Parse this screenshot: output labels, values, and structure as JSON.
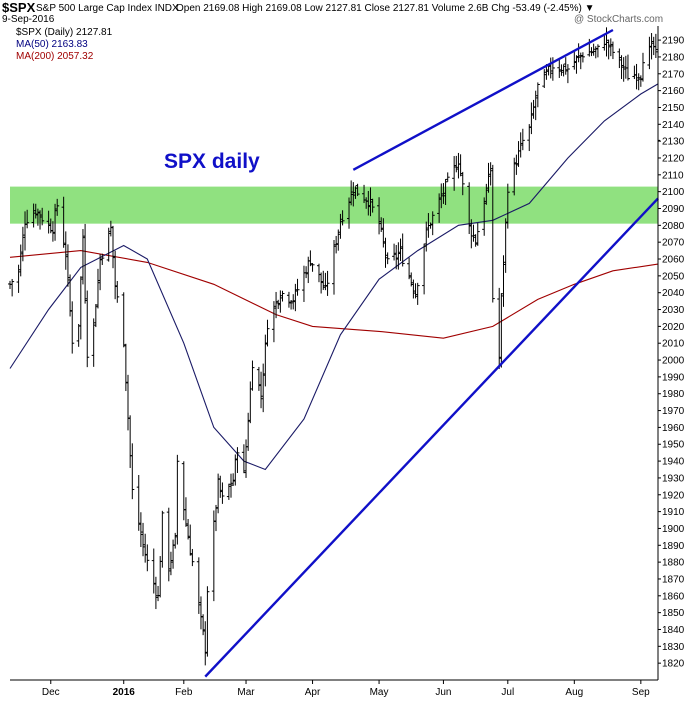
{
  "header": {
    "symbol": "$SPX",
    "description": "S&P 500 Large Cap Index INDX",
    "ohlc_line": "Open 2169.08  High 2169.08  Low 2127.81  Close 2127.81  Volume 2.6B  Chg -53.49 (-2.45%) ▼",
    "date": "9-Sep-2016",
    "credit": "@ StockCharts.com"
  },
  "legend": {
    "price": "$SPX (Daily) 2127.81",
    "ma50": "MA(50) 2163.83",
    "ma200": "MA(200) 2057.32"
  },
  "annotation": "SPX daily",
  "colors": {
    "price": "#000000",
    "ma50": "#1a1a66",
    "ma200": "#a00000",
    "trendline": "#1010c8",
    "zone": "#7ddc6a",
    "annotation": "#1010c8"
  },
  "chart_data": {
    "type": "ohlc",
    "y_axis": {
      "position": "right",
      "ylim": [
        1810,
        2196
      ],
      "ticks": [
        1820,
        1830,
        1840,
        1850,
        1860,
        1870,
        1880,
        1890,
        1900,
        1910,
        1920,
        1930,
        1940,
        1950,
        1960,
        1970,
        1980,
        1990,
        2000,
        2010,
        2020,
        2030,
        2040,
        2050,
        2060,
        2070,
        2080,
        2090,
        2100,
        2110,
        2120,
        2130,
        2140,
        2150,
        2160,
        2170,
        2180,
        2190
      ]
    },
    "x_axis": {
      "range": [
        "2015-11-12",
        "2016-09-09"
      ],
      "ticks": [
        {
          "date": "2015-12-01",
          "label": "Dec",
          "bold": false
        },
        {
          "date": "2016-01-04",
          "label": "2016",
          "bold": true
        },
        {
          "date": "2016-02-01",
          "label": "Feb",
          "bold": false
        },
        {
          "date": "2016-03-01",
          "label": "Mar",
          "bold": false
        },
        {
          "date": "2016-04-01",
          "label": "Apr",
          "bold": false
        },
        {
          "date": "2016-05-02",
          "label": "May",
          "bold": false
        },
        {
          "date": "2016-06-01",
          "label": "Jun",
          "bold": false
        },
        {
          "date": "2016-07-01",
          "label": "Jul",
          "bold": false
        },
        {
          "date": "2016-08-01",
          "label": "Aug",
          "bold": false
        },
        {
          "date": "2016-09-01",
          "label": "Sep",
          "bold": false
        }
      ]
    },
    "price_path": [
      [
        "2015-11-12",
        2045
      ],
      [
        "2015-11-16",
        2053
      ],
      [
        "2015-11-19",
        2083
      ],
      [
        "2015-11-24",
        2089
      ],
      [
        "2015-11-30",
        2080
      ],
      [
        "2015-12-02",
        2079
      ],
      [
        "2015-12-04",
        2092
      ],
      [
        "2015-12-08",
        2063
      ],
      [
        "2015-12-11",
        2012
      ],
      [
        "2015-12-14",
        2022
      ],
      [
        "2015-12-16",
        2073
      ],
      [
        "2015-12-18",
        2005
      ],
      [
        "2015-12-21",
        2021
      ],
      [
        "2015-12-24",
        2060
      ],
      [
        "2015-12-29",
        2078
      ],
      [
        "2015-12-31",
        2044
      ],
      [
        "2016-01-04",
        2012
      ],
      [
        "2016-01-07",
        1943
      ],
      [
        "2016-01-08",
        1922
      ],
      [
        "2016-01-13",
        1890
      ],
      [
        "2016-01-15",
        1880
      ],
      [
        "2016-01-20",
        1859
      ],
      [
        "2016-01-22",
        1906
      ],
      [
        "2016-01-25",
        1877
      ],
      [
        "2016-01-28",
        1893
      ],
      [
        "2016-01-29",
        1940
      ],
      [
        "2016-02-02",
        1903
      ],
      [
        "2016-02-05",
        1880
      ],
      [
        "2016-02-08",
        1853
      ],
      [
        "2016-02-11",
        1829
      ],
      [
        "2016-02-12",
        1864
      ],
      [
        "2016-02-17",
        1926
      ],
      [
        "2016-02-19",
        1917
      ],
      [
        "2016-02-24",
        1929
      ],
      [
        "2016-02-26",
        1948
      ],
      [
        "2016-02-29",
        1932
      ],
      [
        "2016-03-04",
        1999
      ],
      [
        "2016-03-08",
        1979
      ],
      [
        "2016-03-11",
        2022
      ],
      [
        "2016-03-17",
        2040
      ],
      [
        "2016-03-23",
        2036
      ],
      [
        "2016-03-31",
        2060
      ],
      [
        "2016-04-07",
        2041
      ],
      [
        "2016-04-14",
        2083
      ],
      [
        "2016-04-20",
        2102
      ],
      [
        "2016-04-27",
        2095
      ],
      [
        "2016-05-02",
        2081
      ],
      [
        "2016-05-06",
        2057
      ],
      [
        "2016-05-12",
        2064
      ],
      [
        "2016-05-19",
        2040
      ],
      [
        "2016-05-24",
        2076
      ],
      [
        "2016-05-31",
        2097
      ],
      [
        "2016-06-08",
        2119
      ],
      [
        "2016-06-13",
        2079
      ],
      [
        "2016-06-16",
        2071
      ],
      [
        "2016-06-23",
        2113
      ],
      [
        "2016-06-24",
        2037
      ],
      [
        "2016-06-27",
        2001
      ],
      [
        "2016-06-28",
        2036
      ],
      [
        "2016-07-01",
        2103
      ],
      [
        "2016-07-08",
        2130
      ],
      [
        "2016-07-11",
        2137
      ],
      [
        "2016-07-15",
        2162
      ],
      [
        "2016-07-22",
        2175
      ],
      [
        "2016-07-29",
        2173
      ],
      [
        "2016-08-05",
        2182
      ],
      [
        "2016-08-12",
        2184
      ],
      [
        "2016-08-15",
        2190
      ],
      [
        "2016-08-19",
        2183
      ],
      [
        "2016-08-26",
        2169
      ],
      [
        "2016-09-01",
        2170
      ],
      [
        "2016-09-02",
        2180
      ],
      [
        "2016-09-07",
        2186
      ],
      [
        "2016-09-08",
        2181
      ],
      [
        "2016-09-09",
        2128
      ]
    ],
    "ma50_path": [
      [
        "2015-11-12",
        1995
      ],
      [
        "2015-11-30",
        2030
      ],
      [
        "2015-12-15",
        2055
      ],
      [
        "2016-01-04",
        2068
      ],
      [
        "2016-01-15",
        2060
      ],
      [
        "2016-02-01",
        2010
      ],
      [
        "2016-02-15",
        1960
      ],
      [
        "2016-02-29",
        1940
      ],
      [
        "2016-03-10",
        1935
      ],
      [
        "2016-03-28",
        1965
      ],
      [
        "2016-04-14",
        2015
      ],
      [
        "2016-05-02",
        2048
      ],
      [
        "2016-05-20",
        2065
      ],
      [
        "2016-06-08",
        2080
      ],
      [
        "2016-06-24",
        2083
      ],
      [
        "2016-07-11",
        2093
      ],
      [
        "2016-07-29",
        2120
      ],
      [
        "2016-08-15",
        2142
      ],
      [
        "2016-09-01",
        2158
      ],
      [
        "2016-09-09",
        2164
      ]
    ],
    "ma200_path": [
      [
        "2015-11-12",
        2061
      ],
      [
        "2015-12-15",
        2065
      ],
      [
        "2016-01-15",
        2058
      ],
      [
        "2016-02-15",
        2045
      ],
      [
        "2016-03-15",
        2027
      ],
      [
        "2016-04-01",
        2020
      ],
      [
        "2016-05-02",
        2017
      ],
      [
        "2016-06-01",
        2013
      ],
      [
        "2016-06-24",
        2020
      ],
      [
        "2016-07-15",
        2036
      ],
      [
        "2016-08-01",
        2045
      ],
      [
        "2016-08-19",
        2053
      ],
      [
        "2016-09-09",
        2057
      ]
    ],
    "trendlines": [
      {
        "from": [
          "2016-04-20",
          2113
        ],
        "to": [
          "2016-08-19",
          2196
        ]
      },
      {
        "from": [
          "2016-02-11",
          1812
        ],
        "to": [
          "2016-09-09",
          2096
        ]
      }
    ],
    "zone": {
      "low": 2081,
      "high": 2103
    }
  }
}
